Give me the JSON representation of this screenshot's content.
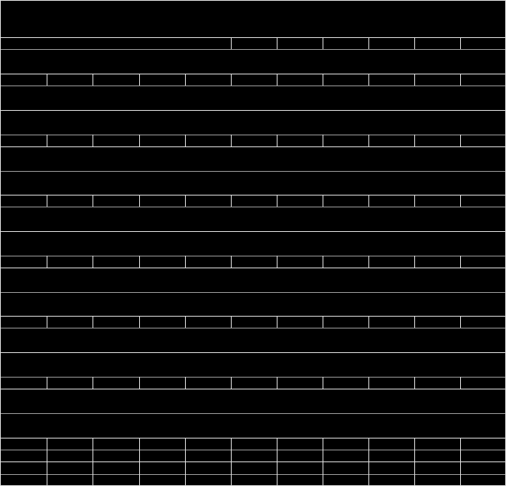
{
  "theme": {
    "background": "#000000",
    "line_color": "#dddddd",
    "dim_line_color": "#999999"
  },
  "table": {
    "columns": 11,
    "text_visible": false
  }
}
